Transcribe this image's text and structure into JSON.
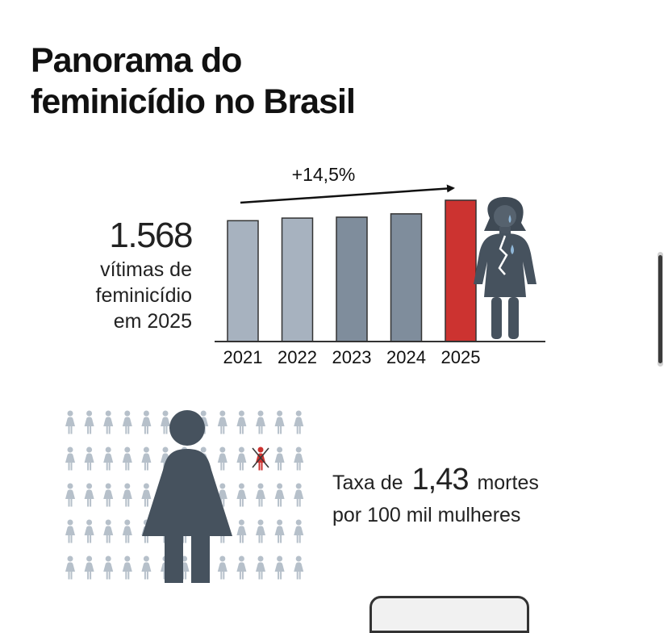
{
  "title": {
    "line1": "Panorama do",
    "line2": "feminicídio no Brasil"
  },
  "victims": {
    "number": "1.568",
    "label_lines": [
      "vítimas de",
      "feminicídio",
      "em 2025"
    ]
  },
  "chart_data": {
    "type": "bar",
    "categories": [
      "2021",
      "2022",
      "2023",
      "2024",
      "2025"
    ],
    "values": [
      1341,
      1370,
      1380,
      1417,
      1568
    ],
    "annotation": "+14,5%",
    "highlight_category": "2025",
    "colors": [
      "#a7b2bf",
      "#a7b2bf",
      "#7f8d9c",
      "#7f8d9c",
      "#cc3330"
    ],
    "grid": false,
    "legend": "none"
  },
  "rate": {
    "prefix": "Taxa de",
    "value": "1,43",
    "suffix": "mortes",
    "line2": "por 100 mil mulheres"
  },
  "icons": {
    "victim_figure": "crying-woman-figure-icon",
    "crowd_figure": "woman-figure-icon",
    "highlighted_figure": "crossed-out-woman-icon",
    "big_figure": "large-woman-figure-icon"
  },
  "colors": {
    "bar_light": "#a7b2bf",
    "bar_dark": "#7f8d9c",
    "highlight": "#cc3330",
    "figure_dark": "#46525e",
    "crowd_figure": "#b6c0ca",
    "tear": "#8fb7d8"
  }
}
